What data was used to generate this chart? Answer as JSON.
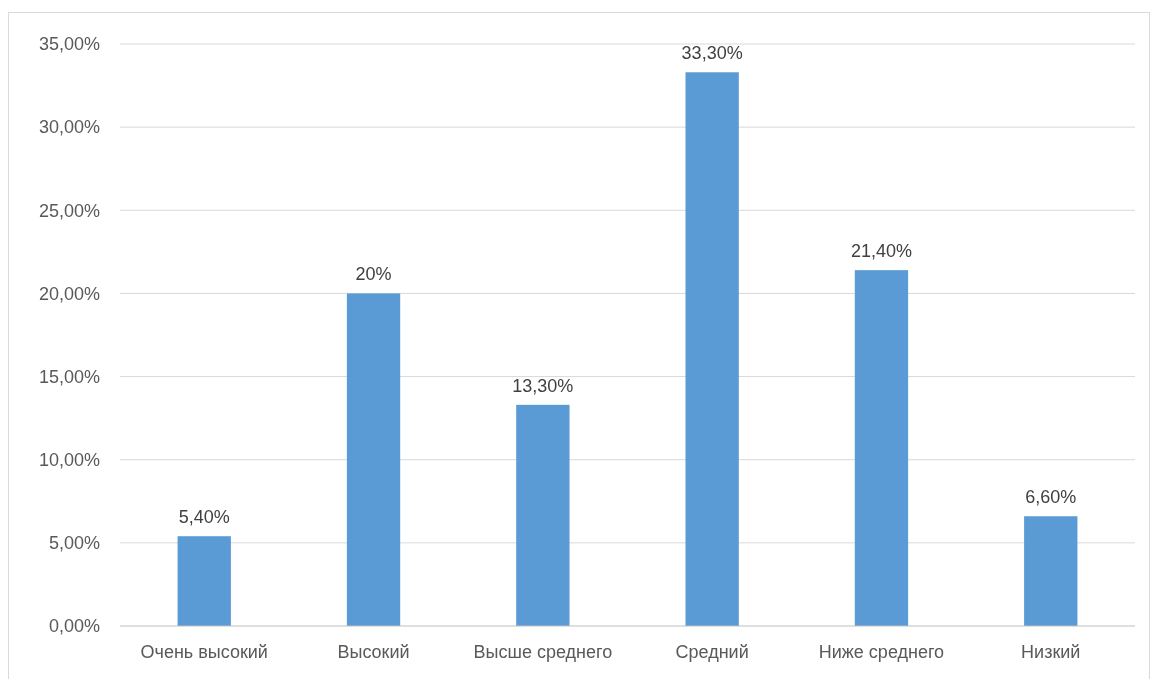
{
  "chart_data": {
    "type": "bar",
    "categories": [
      "Очень высокий",
      "Высокий",
      "Высше среднего",
      "Средний",
      "Ниже среднего",
      "Низкий"
    ],
    "values": [
      5.4,
      20,
      13.3,
      33.3,
      21.4,
      6.6
    ],
    "value_labels": [
      "5,40%",
      "20%",
      "13,30%",
      "33,30%",
      "21,40%",
      "6,60%"
    ],
    "color": "#5b9bd5",
    "ylim": [
      0,
      35
    ],
    "yticks": [
      {
        "value": 0,
        "label": "0,00%"
      },
      {
        "value": 5,
        "label": "5,00%"
      },
      {
        "value": 10,
        "label": "10,00%"
      },
      {
        "value": 15,
        "label": "15,00%"
      },
      {
        "value": 20,
        "label": "20,00%"
      },
      {
        "value": 25,
        "label": "25,00%"
      },
      {
        "value": 30,
        "label": "30,00%"
      },
      {
        "value": 35,
        "label": "35,00%"
      }
    ],
    "grid": "y"
  }
}
